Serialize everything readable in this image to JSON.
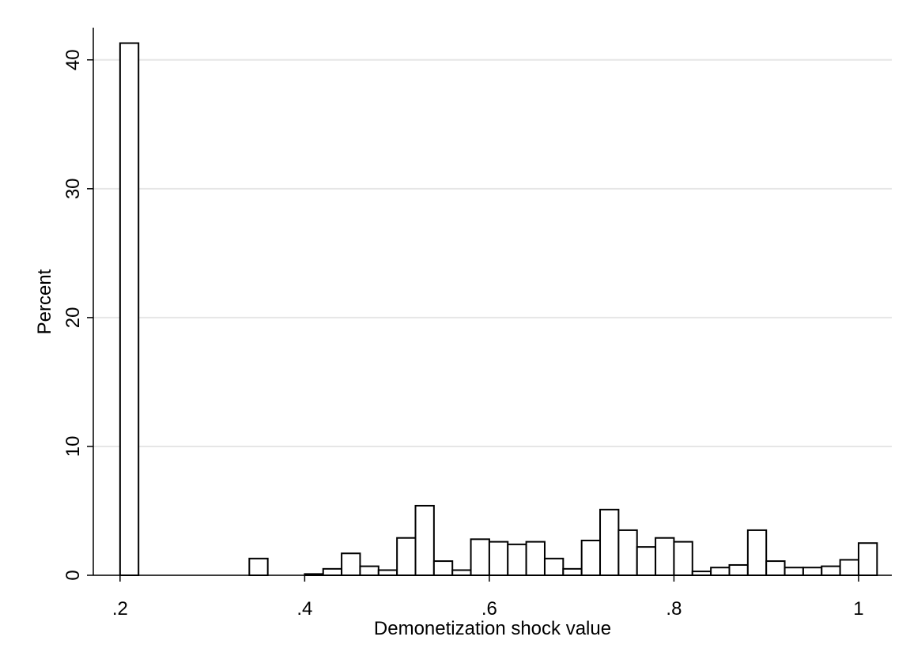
{
  "chart_data": {
    "type": "histogram",
    "x_label": "Demonetization shock value",
    "y_label": "Percent",
    "bins": [
      0.2,
      0.22,
      0.24,
      0.26,
      0.28,
      0.3,
      0.32,
      0.34,
      0.36,
      0.38,
      0.4,
      0.42,
      0.44,
      0.46,
      0.48,
      0.5,
      0.52,
      0.54,
      0.56,
      0.58,
      0.6,
      0.62,
      0.64,
      0.66,
      0.68,
      0.7,
      0.72,
      0.74,
      0.76,
      0.78,
      0.8,
      0.82,
      0.84,
      0.86,
      0.88,
      0.9,
      0.92,
      0.94,
      0.96,
      0.98,
      1.0,
      1.02
    ],
    "values": [
      41.3,
      0,
      0,
      0,
      0,
      0,
      0,
      1.3,
      0,
      0,
      0.1,
      0.5,
      1.7,
      0.7,
      0.4,
      2.9,
      5.4,
      1.1,
      0.4,
      2.8,
      2.6,
      2.4,
      2.6,
      1.3,
      0.5,
      2.7,
      5.1,
      3.5,
      2.2,
      2.9,
      2.6,
      0.3,
      0.6,
      0.8,
      3.5,
      1.1,
      0.6,
      0.6,
      0.7,
      1.2,
      2.5
    ],
    "color": "#ffffff",
    "xlim": [
      0.171,
      1.036
    ],
    "ylim": [
      0,
      42.5
    ],
    "xticks": [
      {
        "value": 0.2,
        "label": ".2"
      },
      {
        "value": 0.4,
        "label": ".4"
      },
      {
        "value": 0.6,
        "label": ".6"
      },
      {
        "value": 0.8,
        "label": ".8"
      },
      1
    ],
    "yticks": [
      0,
      10,
      20,
      30,
      40
    ],
    "grid": true
  }
}
